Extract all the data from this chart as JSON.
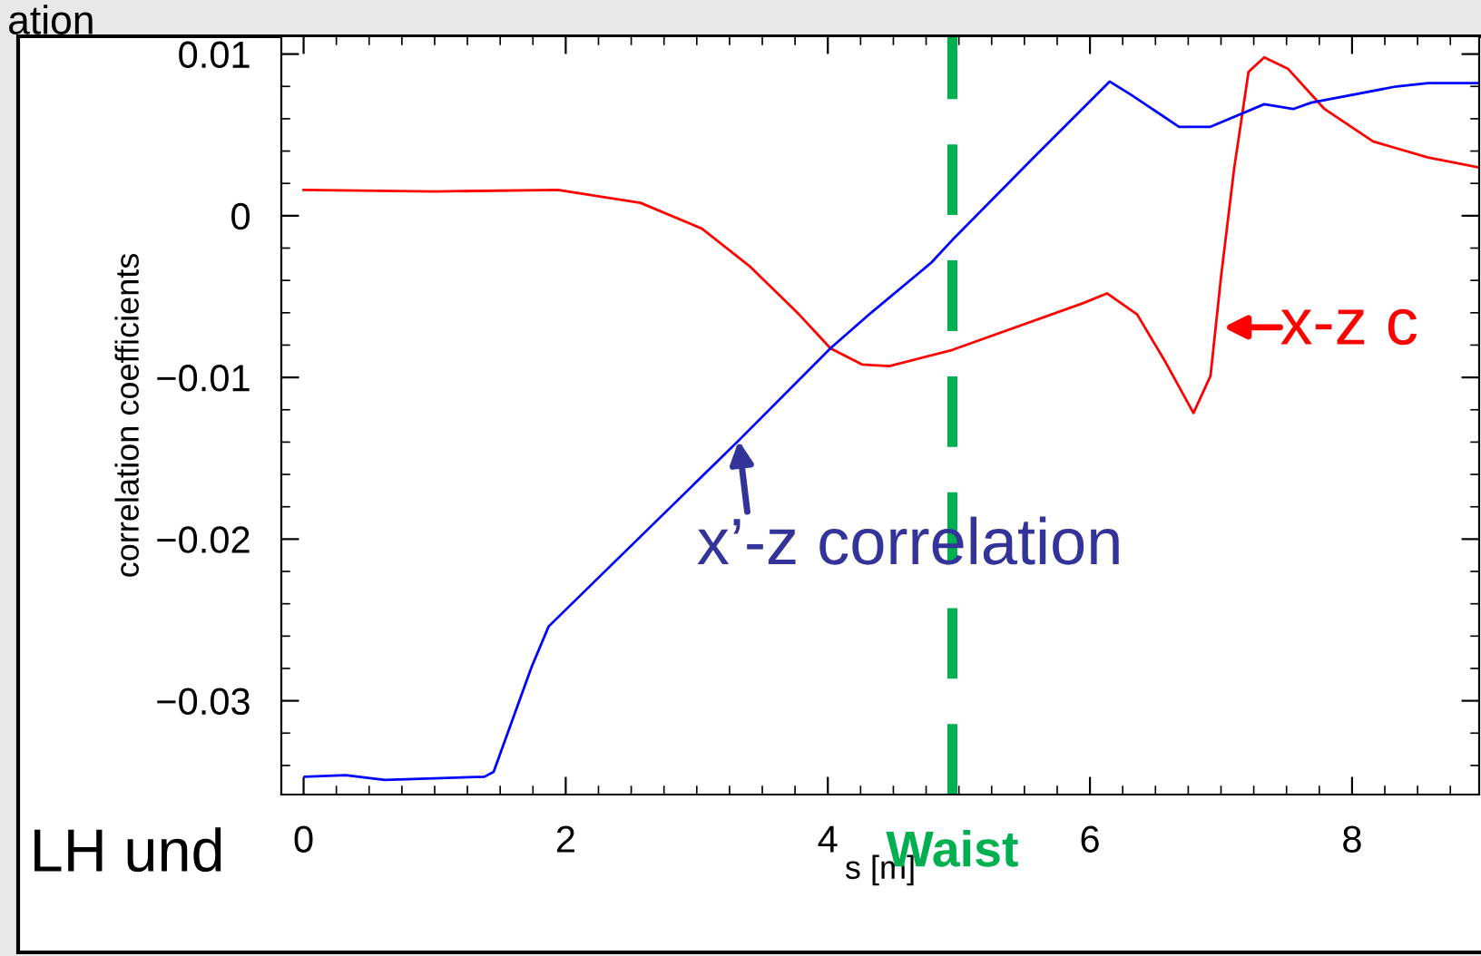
{
  "chart_data": {
    "type": "line",
    "xlabel": "s [m]",
    "ylabel": "correlation coefficients",
    "xlim": [
      -0.17,
      8.97
    ],
    "ylim": [
      -0.0358,
      0.0111
    ],
    "xticks": [
      0,
      2,
      4,
      6,
      8
    ],
    "yticks": [
      {
        "value": -0.03,
        "label": "−0.03"
      },
      {
        "value": -0.02,
        "label": "−0.02"
      },
      {
        "value": -0.01,
        "label": "−0.01"
      },
      0,
      0.01
    ],
    "grid": false,
    "legend": false,
    "marker": "none",
    "line_style": "solid",
    "series": [
      {
        "color": "#ff0000",
        "x": [
          0.0,
          1.0,
          1.94,
          2.57,
          3.04,
          3.4,
          3.78,
          4.02,
          4.26,
          4.47,
          4.95,
          5.95,
          6.13,
          6.36,
          6.58,
          6.79,
          6.92,
          7.0,
          7.1,
          7.21,
          7.33,
          7.51,
          7.79,
          8.16,
          8.58,
          8.96
        ],
        "values": [
          0.0016,
          0.0015,
          0.0016,
          0.0008,
          -0.0008,
          -0.0031,
          -0.0061,
          -0.0082,
          -0.0092,
          -0.0093,
          -0.0083,
          -0.0054,
          -0.0048,
          -0.0061,
          -0.0091,
          -0.0122,
          -0.0099,
          -0.0038,
          0.0029,
          0.0089,
          0.0098,
          0.0091,
          0.0066,
          0.0046,
          0.0036,
          0.003
        ]
      },
      {
        "color": "#0000ff",
        "x": [
          0.01,
          0.32,
          0.62,
          1.38,
          1.45,
          1.74,
          1.87,
          3.32,
          4.02,
          4.33,
          4.79,
          4.95,
          5.57,
          6.15,
          6.31,
          6.68,
          6.92,
          7.33,
          7.55,
          7.69,
          8.34,
          8.58,
          8.96
        ],
        "values": [
          -0.0347,
          -0.0346,
          -0.0349,
          -0.0347,
          -0.0344,
          -0.0279,
          -0.0254,
          -0.0139,
          -0.0082,
          -0.006,
          -0.0029,
          -0.0015,
          0.0036,
          0.0083,
          0.0075,
          0.0055,
          0.0055,
          0.0069,
          0.0066,
          0.007,
          0.008,
          0.0082,
          0.0082
        ]
      }
    ],
    "ref_lines": [
      {
        "axis": "x",
        "value": 4.95,
        "label": "Waist",
        "color": "#00b050",
        "line_style": "dashed"
      }
    ],
    "annotations": [
      {
        "text": "x’-z correlation",
        "x": 3.32,
        "y": -0.0139
      },
      {
        "text": "x-z c",
        "x": 6.96,
        "y": -0.0069
      },
      "ation",
      "LH und"
    ]
  }
}
